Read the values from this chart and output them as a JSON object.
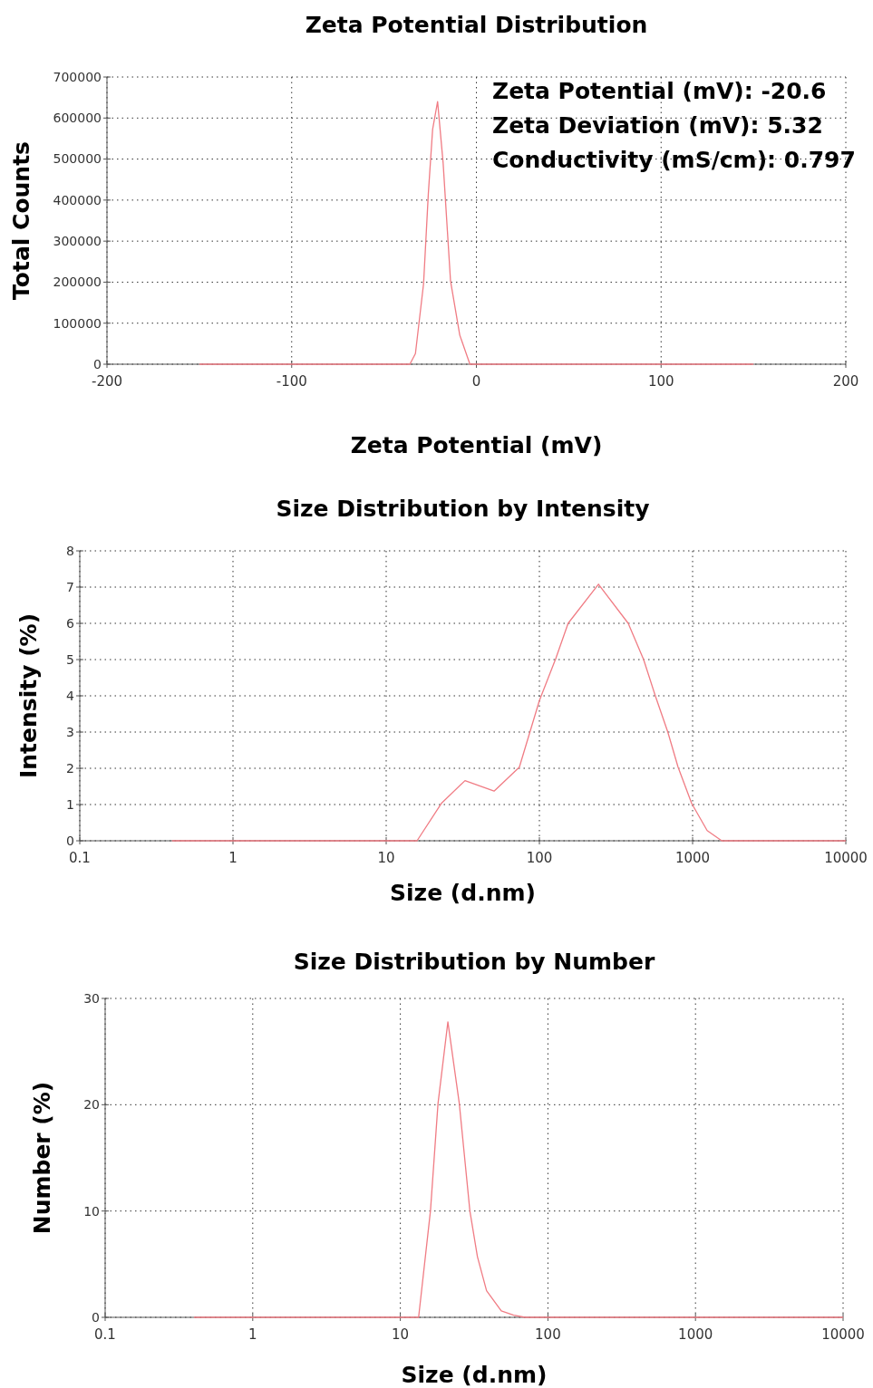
{
  "chart_data": [
    {
      "type": "line",
      "title": "Zeta Potential Distribution",
      "xlabel": "Zeta Potential (mV)",
      "ylabel": "Total Counts",
      "xlim": [
        -200,
        200
      ],
      "xticks": [
        -200,
        -100,
        0,
        100,
        200
      ],
      "ylim": [
        0,
        700000
      ],
      "yticks": [
        0,
        100000,
        200000,
        300000,
        400000,
        500000,
        600000,
        700000
      ],
      "grid": true,
      "annotations": [
        "Zeta Potential (mV): -20.6",
        "Zeta Deviation (mV): 5.32",
        "Conductivity (mS/cm): 0.797"
      ],
      "series": [
        {
          "color": "#f07c84",
          "x": [
            -150,
            -36,
            -33,
            -28.6,
            -26,
            -23.7,
            -21,
            -18,
            -14,
            -9,
            -3.5,
            150
          ],
          "values": [
            0,
            0,
            26000,
            196000,
            417000,
            572000,
            640000,
            490000,
            203000,
            71000,
            0,
            0
          ]
        }
      ]
    },
    {
      "type": "line",
      "title": "Size Distribution by Intensity",
      "xlabel": "Size (d.nm)",
      "ylabel": "Intensity (%)",
      "log": "x",
      "xlim": [
        0.1,
        10000
      ],
      "xticks": [
        0.1,
        1,
        10,
        100,
        1000,
        10000
      ],
      "ylim": [
        0,
        8
      ],
      "yticks": [
        0,
        1,
        2,
        3,
        4,
        5,
        6,
        7,
        8
      ],
      "grid": true,
      "series": [
        {
          "color": "#f07c84",
          "x": [
            0.4,
            15.9,
            22.9,
            32.7,
            50.6,
            74,
            100,
            128,
            154,
            243,
            380,
            479,
            571,
            689,
            804,
            986,
            1245,
            1550,
            10000
          ],
          "values": [
            0,
            0,
            1.03,
            1.66,
            1.37,
            2.03,
            3.87,
            5.03,
            6.0,
            7.08,
            6.0,
            5.0,
            4.0,
            3.0,
            2.03,
            1.03,
            0.28,
            0,
            0
          ]
        }
      ]
    },
    {
      "type": "line",
      "title": "Size Distribution by Number",
      "xlabel": "Size (d.nm)",
      "ylabel": "Number (%)",
      "log": "x",
      "xlim": [
        0.1,
        10000
      ],
      "xticks": [
        0.1,
        1,
        10,
        100,
        1000,
        10000
      ],
      "ylim": [
        0,
        30
      ],
      "yticks": [
        0,
        10,
        20,
        30
      ],
      "grid": true,
      "series": [
        {
          "color": "#f07c84",
          "x": [
            0.4,
            13.3,
            16,
            18,
            21,
            25.1,
            29.6,
            33.3,
            38.4,
            48.3,
            58.6,
            70,
            10000
          ],
          "values": [
            0,
            0,
            10,
            20.1,
            27.8,
            20.1,
            10,
            5.7,
            2.5,
            0.6,
            0.2,
            0,
            0
          ]
        }
      ]
    }
  ]
}
